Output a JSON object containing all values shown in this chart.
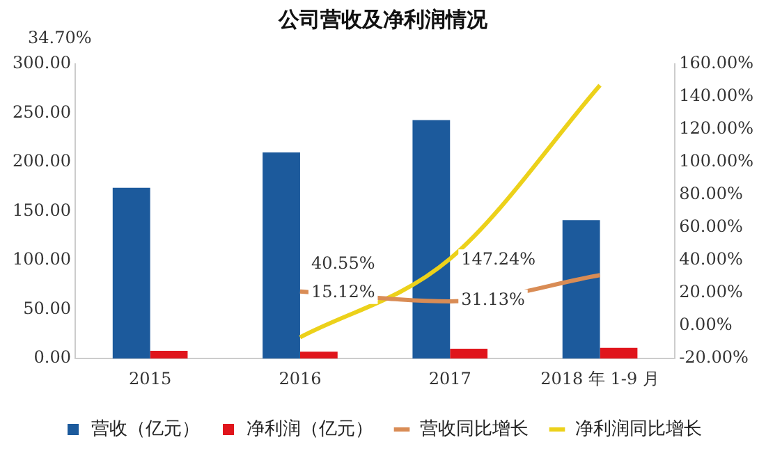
{
  "chart_data": {
    "type": "bar",
    "title": "公司营收及净利润情况",
    "categories": [
      "2015",
      "2016",
      "2017",
      "2018 年 1-9 月"
    ],
    "series": [
      {
        "name": "营收（亿元）",
        "color": "#1c5a9c",
        "values": [
          174,
          210,
          243,
          141
        ]
      },
      {
        "name": "净利润（亿元）",
        "color": "#e0151c",
        "values": [
          8,
          7,
          10,
          11
        ]
      },
      {
        "name": "营收同比增长",
        "type": "line",
        "axis": "y2",
        "color": "#d98c55",
        "values": [
          null,
          21,
          15,
          31
        ]
      },
      {
        "name": "净利润同比增长",
        "type": "line",
        "axis": "y2",
        "color": "#ecd11a",
        "values": [
          null,
          -7,
          41,
          147
        ]
      }
    ],
    "ylim": [
      0,
      300
    ],
    "yticks": [
      {
        "value": 0,
        "label": "0.00"
      },
      {
        "value": 50,
        "label": "50.00"
      },
      {
        "value": 100,
        "label": "100.00"
      },
      {
        "value": 150,
        "label": "150.00"
      },
      {
        "value": 200,
        "label": "200.00"
      },
      {
        "value": 250,
        "label": "250.00"
      },
      {
        "value": 300,
        "label": "300.00"
      }
    ],
    "y2lim": [
      -20,
      160
    ],
    "y2ticks": [
      {
        "value": -20,
        "label": "-20.00%"
      },
      {
        "value": 0,
        "label": "0.00%"
      },
      {
        "value": 20,
        "label": "20.00%"
      },
      {
        "value": 40,
        "label": "40.00%"
      },
      {
        "value": 60,
        "label": "60.00%"
      },
      {
        "value": 80,
        "label": "80.00%"
      },
      {
        "value": 100,
        "label": "100.00%"
      },
      {
        "value": 120,
        "label": "120.00%"
      },
      {
        "value": 140,
        "label": "140.00%"
      },
      {
        "value": 160,
        "label": "160.00%"
      }
    ],
    "annotations": [
      "34.70%",
      {
        "text": "40.55%",
        "x": "2016",
        "y": 96
      },
      {
        "text": "15.12%",
        "x": "2016",
        "y": 67
      },
      {
        "text": "147.24%",
        "x": "2017",
        "y": 100
      },
      {
        "text": "31.13%",
        "x": "2017",
        "y": 59
      }
    ],
    "grid": false,
    "legend": "bottom",
    "marker": "none",
    "line_style": "solid"
  }
}
